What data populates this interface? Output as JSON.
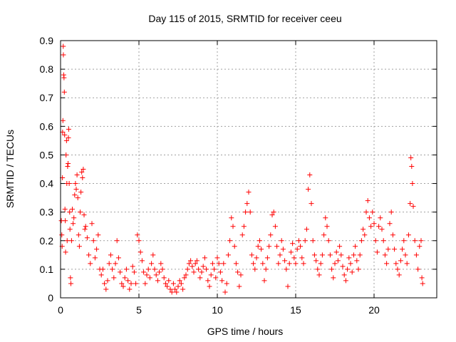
{
  "chart_data": {
    "type": "scatter",
    "title": "Day 115 of 2015, SRMTID for receiver ceeu",
    "xlabel": "GPS time / hours",
    "ylabel": "SRMTID / TECUs",
    "xlim": [
      0,
      24
    ],
    "ylim": [
      0,
      0.9
    ],
    "xticks": [
      0,
      5,
      10,
      15,
      20
    ],
    "yticks": [
      0,
      0.1,
      0.2,
      0.3,
      0.4,
      0.5,
      0.6,
      0.7,
      0.8,
      0.9
    ],
    "xtick_labels": [
      "0",
      "5",
      "10",
      "15",
      "20"
    ],
    "ytick_labels": [
      "0",
      "0.1",
      "0.2",
      "0.3",
      "0.4",
      "0.5",
      "0.6",
      "0.7",
      "0.8",
      "0.9"
    ],
    "grid": true,
    "marker": "+",
    "color": "#ff0000",
    "series": [
      {
        "name": "SRMTID",
        "points": [
          [
            0.05,
            0.27
          ],
          [
            0.08,
            0.22
          ],
          [
            0.1,
            0.18
          ],
          [
            0.12,
            0.42
          ],
          [
            0.13,
            0.58
          ],
          [
            0.15,
            0.62
          ],
          [
            0.17,
            0.88
          ],
          [
            0.18,
            0.85
          ],
          [
            0.2,
            0.78
          ],
          [
            0.22,
            0.77
          ],
          [
            0.24,
            0.72
          ],
          [
            0.26,
            0.57
          ],
          [
            0.28,
            0.31
          ],
          [
            0.3,
            0.27
          ],
          [
            0.32,
            0.16
          ],
          [
            0.35,
            0.5
          ],
          [
            0.38,
            0.55
          ],
          [
            0.4,
            0.4
          ],
          [
            0.42,
            0.2
          ],
          [
            0.45,
            0.46
          ],
          [
            0.48,
            0.47
          ],
          [
            0.5,
            0.56
          ],
          [
            0.52,
            0.59
          ],
          [
            0.55,
            0.4
          ],
          [
            0.58,
            0.3
          ],
          [
            0.6,
            0.24
          ],
          [
            0.63,
            0.07
          ],
          [
            0.66,
            0.05
          ],
          [
            0.7,
            0.2
          ],
          [
            0.75,
            0.31
          ],
          [
            0.8,
            0.26
          ],
          [
            0.85,
            0.28
          ],
          [
            0.9,
            0.36
          ],
          [
            0.95,
            0.4
          ],
          [
            1.0,
            0.38
          ],
          [
            1.05,
            0.43
          ],
          [
            1.1,
            0.35
          ],
          [
            1.15,
            0.22
          ],
          [
            1.2,
            0.18
          ],
          [
            1.25,
            0.3
          ],
          [
            1.3,
            0.37
          ],
          [
            1.35,
            0.44
          ],
          [
            1.4,
            0.42
          ],
          [
            1.45,
            0.45
          ],
          [
            1.5,
            0.29
          ],
          [
            1.55,
            0.24
          ],
          [
            1.6,
            0.25
          ],
          [
            1.7,
            0.21
          ],
          [
            1.8,
            0.15
          ],
          [
            1.9,
            0.12
          ],
          [
            2.0,
            0.26
          ],
          [
            2.1,
            0.2
          ],
          [
            2.2,
            0.14
          ],
          [
            2.3,
            0.17
          ],
          [
            2.4,
            0.22
          ],
          [
            2.5,
            0.1
          ],
          [
            2.6,
            0.08
          ],
          [
            2.7,
            0.1
          ],
          [
            2.8,
            0.05
          ],
          [
            2.9,
            0.03
          ],
          [
            3.0,
            0.06
          ],
          [
            3.1,
            0.12
          ],
          [
            3.2,
            0.15
          ],
          [
            3.3,
            0.1
          ],
          [
            3.4,
            0.07
          ],
          [
            3.5,
            0.12
          ],
          [
            3.6,
            0.2
          ],
          [
            3.7,
            0.14
          ],
          [
            3.8,
            0.09
          ],
          [
            3.9,
            0.05
          ],
          [
            4.0,
            0.04
          ],
          [
            4.1,
            0.07
          ],
          [
            4.2,
            0.1
          ],
          [
            4.3,
            0.06
          ],
          [
            4.4,
            0.03
          ],
          [
            4.5,
            0.05
          ],
          [
            4.6,
            0.11
          ],
          [
            4.7,
            0.09
          ],
          [
            4.8,
            0.05
          ],
          [
            4.9,
            0.22
          ],
          [
            5.0,
            0.2
          ],
          [
            5.1,
            0.16
          ],
          [
            5.2,
            0.13
          ],
          [
            5.3,
            0.09
          ],
          [
            5.4,
            0.05
          ],
          [
            5.5,
            0.08
          ],
          [
            5.6,
            0.1
          ],
          [
            5.7,
            0.07
          ],
          [
            5.8,
            0.12
          ],
          [
            5.9,
            0.15
          ],
          [
            6.0,
            0.1
          ],
          [
            6.1,
            0.08
          ],
          [
            6.2,
            0.06
          ],
          [
            6.3,
            0.09
          ],
          [
            6.4,
            0.12
          ],
          [
            6.5,
            0.1
          ],
          [
            6.6,
            0.07
          ],
          [
            6.7,
            0.05
          ],
          [
            6.8,
            0.04
          ],
          [
            6.9,
            0.06
          ],
          [
            7.0,
            0.03
          ],
          [
            7.1,
            0.02
          ],
          [
            7.2,
            0.05
          ],
          [
            7.3,
            0.03
          ],
          [
            7.4,
            0.02
          ],
          [
            7.5,
            0.04
          ],
          [
            7.6,
            0.06
          ],
          [
            7.7,
            0.05
          ],
          [
            7.8,
            0.03
          ],
          [
            7.9,
            0.07
          ],
          [
            8.0,
            0.08
          ],
          [
            8.1,
            0.1
          ],
          [
            8.2,
            0.12
          ],
          [
            8.3,
            0.13
          ],
          [
            8.4,
            0.11
          ],
          [
            8.5,
            0.09
          ],
          [
            8.6,
            0.12
          ],
          [
            8.7,
            0.13
          ],
          [
            8.8,
            0.1
          ],
          [
            8.9,
            0.07
          ],
          [
            9.0,
            0.09
          ],
          [
            9.1,
            0.11
          ],
          [
            9.2,
            0.14
          ],
          [
            9.3,
            0.1
          ],
          [
            9.4,
            0.06
          ],
          [
            9.5,
            0.04
          ],
          [
            9.6,
            0.08
          ],
          [
            9.7,
            0.12
          ],
          [
            9.8,
            0.1
          ],
          [
            9.9,
            0.07
          ],
          [
            10.0,
            0.14
          ],
          [
            10.1,
            0.12
          ],
          [
            10.2,
            0.09
          ],
          [
            10.3,
            0.06
          ],
          [
            10.4,
            0.12
          ],
          [
            10.5,
            0.02
          ],
          [
            10.6,
            0.05
          ],
          [
            10.7,
            0.15
          ],
          [
            10.8,
            0.2
          ],
          [
            10.9,
            0.28
          ],
          [
            11.0,
            0.25
          ],
          [
            11.1,
            0.18
          ],
          [
            11.2,
            0.12
          ],
          [
            11.3,
            0.09
          ],
          [
            11.4,
            0.04
          ],
          [
            11.5,
            0.08
          ],
          [
            11.6,
            0.22
          ],
          [
            11.7,
            0.25
          ],
          [
            11.8,
            0.3
          ],
          [
            11.9,
            0.33
          ],
          [
            12.0,
            0.37
          ],
          [
            12.1,
            0.3
          ],
          [
            12.2,
            0.15
          ],
          [
            12.3,
            0.12
          ],
          [
            12.4,
            0.1
          ],
          [
            12.5,
            0.14
          ],
          [
            12.6,
            0.18
          ],
          [
            12.7,
            0.2
          ],
          [
            12.8,
            0.17
          ],
          [
            12.9,
            0.12
          ],
          [
            13.0,
            0.06
          ],
          [
            13.1,
            0.1
          ],
          [
            13.2,
            0.14
          ],
          [
            13.3,
            0.18
          ],
          [
            13.4,
            0.22
          ],
          [
            13.5,
            0.29
          ],
          [
            13.6,
            0.3
          ],
          [
            13.7,
            0.25
          ],
          [
            13.8,
            0.18
          ],
          [
            13.9,
            0.12
          ],
          [
            14.0,
            0.15
          ],
          [
            14.1,
            0.2
          ],
          [
            14.2,
            0.17
          ],
          [
            14.3,
            0.13
          ],
          [
            14.4,
            0.1
          ],
          [
            14.5,
            0.04
          ],
          [
            14.6,
            0.12
          ],
          [
            14.7,
            0.16
          ],
          [
            14.8,
            0.19
          ],
          [
            14.9,
            0.14
          ],
          [
            15.0,
            0.12
          ],
          [
            15.1,
            0.17
          ],
          [
            15.2,
            0.2
          ],
          [
            15.3,
            0.18
          ],
          [
            15.4,
            0.14
          ],
          [
            15.5,
            0.12
          ],
          [
            15.6,
            0.2
          ],
          [
            15.7,
            0.24
          ],
          [
            15.8,
            0.38
          ],
          [
            15.9,
            0.43
          ],
          [
            16.0,
            0.33
          ],
          [
            16.1,
            0.2
          ],
          [
            16.2,
            0.15
          ],
          [
            16.3,
            0.13
          ],
          [
            16.4,
            0.1
          ],
          [
            16.5,
            0.08
          ],
          [
            16.6,
            0.12
          ],
          [
            16.7,
            0.15
          ],
          [
            16.8,
            0.22
          ],
          [
            16.9,
            0.28
          ],
          [
            17.0,
            0.25
          ],
          [
            17.1,
            0.2
          ],
          [
            17.2,
            0.15
          ],
          [
            17.3,
            0.1
          ],
          [
            17.4,
            0.07
          ],
          [
            17.5,
            0.12
          ],
          [
            17.6,
            0.16
          ],
          [
            17.7,
            0.13
          ],
          [
            17.8,
            0.18
          ],
          [
            17.9,
            0.15
          ],
          [
            18.0,
            0.11
          ],
          [
            18.1,
            0.08
          ],
          [
            18.2,
            0.06
          ],
          [
            18.3,
            0.1
          ],
          [
            18.4,
            0.14
          ],
          [
            18.5,
            0.12
          ],
          [
            18.6,
            0.09
          ],
          [
            18.7,
            0.15
          ],
          [
            18.8,
            0.18
          ],
          [
            18.9,
            0.13
          ],
          [
            19.0,
            0.1
          ],
          [
            19.1,
            0.15
          ],
          [
            19.2,
            0.2
          ],
          [
            19.3,
            0.24
          ],
          [
            19.4,
            0.22
          ],
          [
            19.5,
            0.3
          ],
          [
            19.6,
            0.34
          ],
          [
            19.7,
            0.28
          ],
          [
            19.8,
            0.25
          ],
          [
            19.9,
            0.3
          ],
          [
            20.0,
            0.26
          ],
          [
            20.1,
            0.2
          ],
          [
            20.2,
            0.16
          ],
          [
            20.3,
            0.25
          ],
          [
            20.4,
            0.28
          ],
          [
            20.5,
            0.24
          ],
          [
            20.6,
            0.2
          ],
          [
            20.7,
            0.15
          ],
          [
            20.8,
            0.12
          ],
          [
            20.9,
            0.17
          ],
          [
            21.0,
            0.26
          ],
          [
            21.1,
            0.3
          ],
          [
            21.2,
            0.22
          ],
          [
            21.3,
            0.17
          ],
          [
            21.4,
            0.12
          ],
          [
            21.5,
            0.1
          ],
          [
            21.6,
            0.08
          ],
          [
            21.7,
            0.13
          ],
          [
            21.8,
            0.17
          ],
          [
            21.9,
            0.2
          ],
          [
            22.0,
            0.15
          ],
          [
            22.1,
            0.12
          ],
          [
            22.2,
            0.22
          ],
          [
            22.3,
            0.33
          ],
          [
            22.35,
            0.49
          ],
          [
            22.4,
            0.46
          ],
          [
            22.45,
            0.4
          ],
          [
            22.5,
            0.32
          ],
          [
            22.6,
            0.2
          ],
          [
            22.7,
            0.15
          ],
          [
            22.8,
            0.1
          ],
          [
            22.9,
            0.18
          ],
          [
            23.0,
            0.2
          ],
          [
            23.05,
            0.07
          ],
          [
            23.1,
            0.05
          ]
        ]
      }
    ]
  }
}
